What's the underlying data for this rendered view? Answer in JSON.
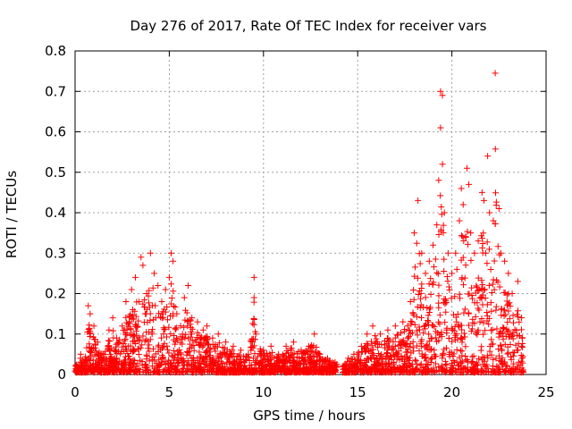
{
  "chart_data": {
    "type": "scatter",
    "title": "Day 276 of 2017, Rate Of TEC Index for receiver vars",
    "xlabel": "GPS time / hours",
    "ylabel": "ROTI / TECUs",
    "xlim": [
      0,
      25
    ],
    "ylim": [
      0,
      0.8
    ],
    "xticks": [
      "0",
      "5",
      "10",
      "15",
      "20",
      "25"
    ],
    "yticks": [
      "0",
      "0.1",
      "0.2",
      "0.3",
      "0.4",
      "0.5",
      "0.6",
      "0.7",
      "0.8"
    ],
    "grid": true,
    "legend": "none",
    "marker": "plus",
    "color": "#ff0000",
    "series": [
      {
        "points": [
          [
            0.1,
            0.02
          ],
          [
            0.3,
            0.05
          ],
          [
            0.5,
            0.03
          ],
          [
            0.7,
            0.17
          ],
          [
            0.8,
            0.15
          ],
          [
            1.0,
            0.12
          ],
          [
            1.2,
            0.08
          ],
          [
            1.5,
            0.05
          ],
          [
            1.8,
            0.11
          ],
          [
            2.0,
            0.14
          ],
          [
            2.2,
            0.09
          ],
          [
            2.5,
            0.12
          ],
          [
            2.7,
            0.18
          ],
          [
            3.0,
            0.21
          ],
          [
            3.2,
            0.24
          ],
          [
            3.4,
            0.18
          ],
          [
            3.5,
            0.29
          ],
          [
            3.6,
            0.27
          ],
          [
            3.8,
            0.2
          ],
          [
            4.0,
            0.3
          ],
          [
            4.2,
            0.25
          ],
          [
            4.4,
            0.22
          ],
          [
            4.6,
            0.18
          ],
          [
            4.8,
            0.21
          ],
          [
            5.0,
            0.24
          ],
          [
            5.1,
            0.3
          ],
          [
            5.2,
            0.28
          ],
          [
            5.4,
            0.15
          ],
          [
            5.6,
            0.12
          ],
          [
            5.8,
            0.19
          ],
          [
            6.0,
            0.22
          ],
          [
            6.2,
            0.14
          ],
          [
            6.5,
            0.13
          ],
          [
            6.8,
            0.11
          ],
          [
            7.0,
            0.12
          ],
          [
            7.3,
            0.09
          ],
          [
            7.6,
            0.1
          ],
          [
            8.0,
            0.08
          ],
          [
            8.4,
            0.07
          ],
          [
            8.8,
            0.06
          ],
          [
            9.2,
            0.05
          ],
          [
            9.5,
            0.24
          ],
          [
            9.5,
            0.19
          ],
          [
            9.6,
            0.1
          ],
          [
            10.0,
            0.06
          ],
          [
            10.4,
            0.07
          ],
          [
            10.8,
            0.05
          ],
          [
            11.2,
            0.07
          ],
          [
            11.6,
            0.08
          ],
          [
            12.0,
            0.06
          ],
          [
            12.4,
            0.07
          ],
          [
            12.7,
            0.1
          ],
          [
            13.0,
            0.05
          ],
          [
            13.4,
            0.04
          ],
          [
            13.8,
            0.03
          ],
          [
            14.2,
            0.02
          ],
          [
            14.5,
            0.04
          ],
          [
            14.8,
            0.05
          ],
          [
            15.2,
            0.07
          ],
          [
            15.5,
            0.1
          ],
          [
            15.8,
            0.12
          ],
          [
            16.2,
            0.1
          ],
          [
            16.6,
            0.11
          ],
          [
            17.0,
            0.12
          ],
          [
            17.4,
            0.13
          ],
          [
            17.8,
            0.18
          ],
          [
            18.0,
            0.35
          ],
          [
            18.2,
            0.43
          ],
          [
            18.4,
            0.3
          ],
          [
            18.6,
            0.25
          ],
          [
            18.8,
            0.28
          ],
          [
            19.0,
            0.32
          ],
          [
            19.2,
            0.37
          ],
          [
            19.3,
            0.48
          ],
          [
            19.4,
            0.61
          ],
          [
            19.4,
            0.7
          ],
          [
            19.5,
            0.69
          ],
          [
            19.5,
            0.52
          ],
          [
            19.6,
            0.4
          ],
          [
            19.8,
            0.3
          ],
          [
            20.0,
            0.25
          ],
          [
            20.2,
            0.3
          ],
          [
            20.4,
            0.38
          ],
          [
            20.5,
            0.46
          ],
          [
            20.6,
            0.42
          ],
          [
            20.8,
            0.51
          ],
          [
            20.9,
            0.47
          ],
          [
            21.0,
            0.35
          ],
          [
            21.2,
            0.3
          ],
          [
            21.4,
            0.33
          ],
          [
            21.6,
            0.45
          ],
          [
            21.7,
            0.43
          ],
          [
            21.8,
            0.3
          ],
          [
            21.9,
            0.54
          ],
          [
            22.0,
            0.4
          ],
          [
            22.2,
            0.38
          ],
          [
            22.3,
            0.745
          ],
          [
            22.5,
            0.41
          ],
          [
            22.6,
            0.3
          ],
          [
            22.8,
            0.28
          ],
          [
            23.0,
            0.25
          ],
          [
            23.2,
            0.2
          ],
          [
            23.5,
            0.23
          ],
          [
            23.7,
            0.14
          ]
        ]
      }
    ]
  }
}
